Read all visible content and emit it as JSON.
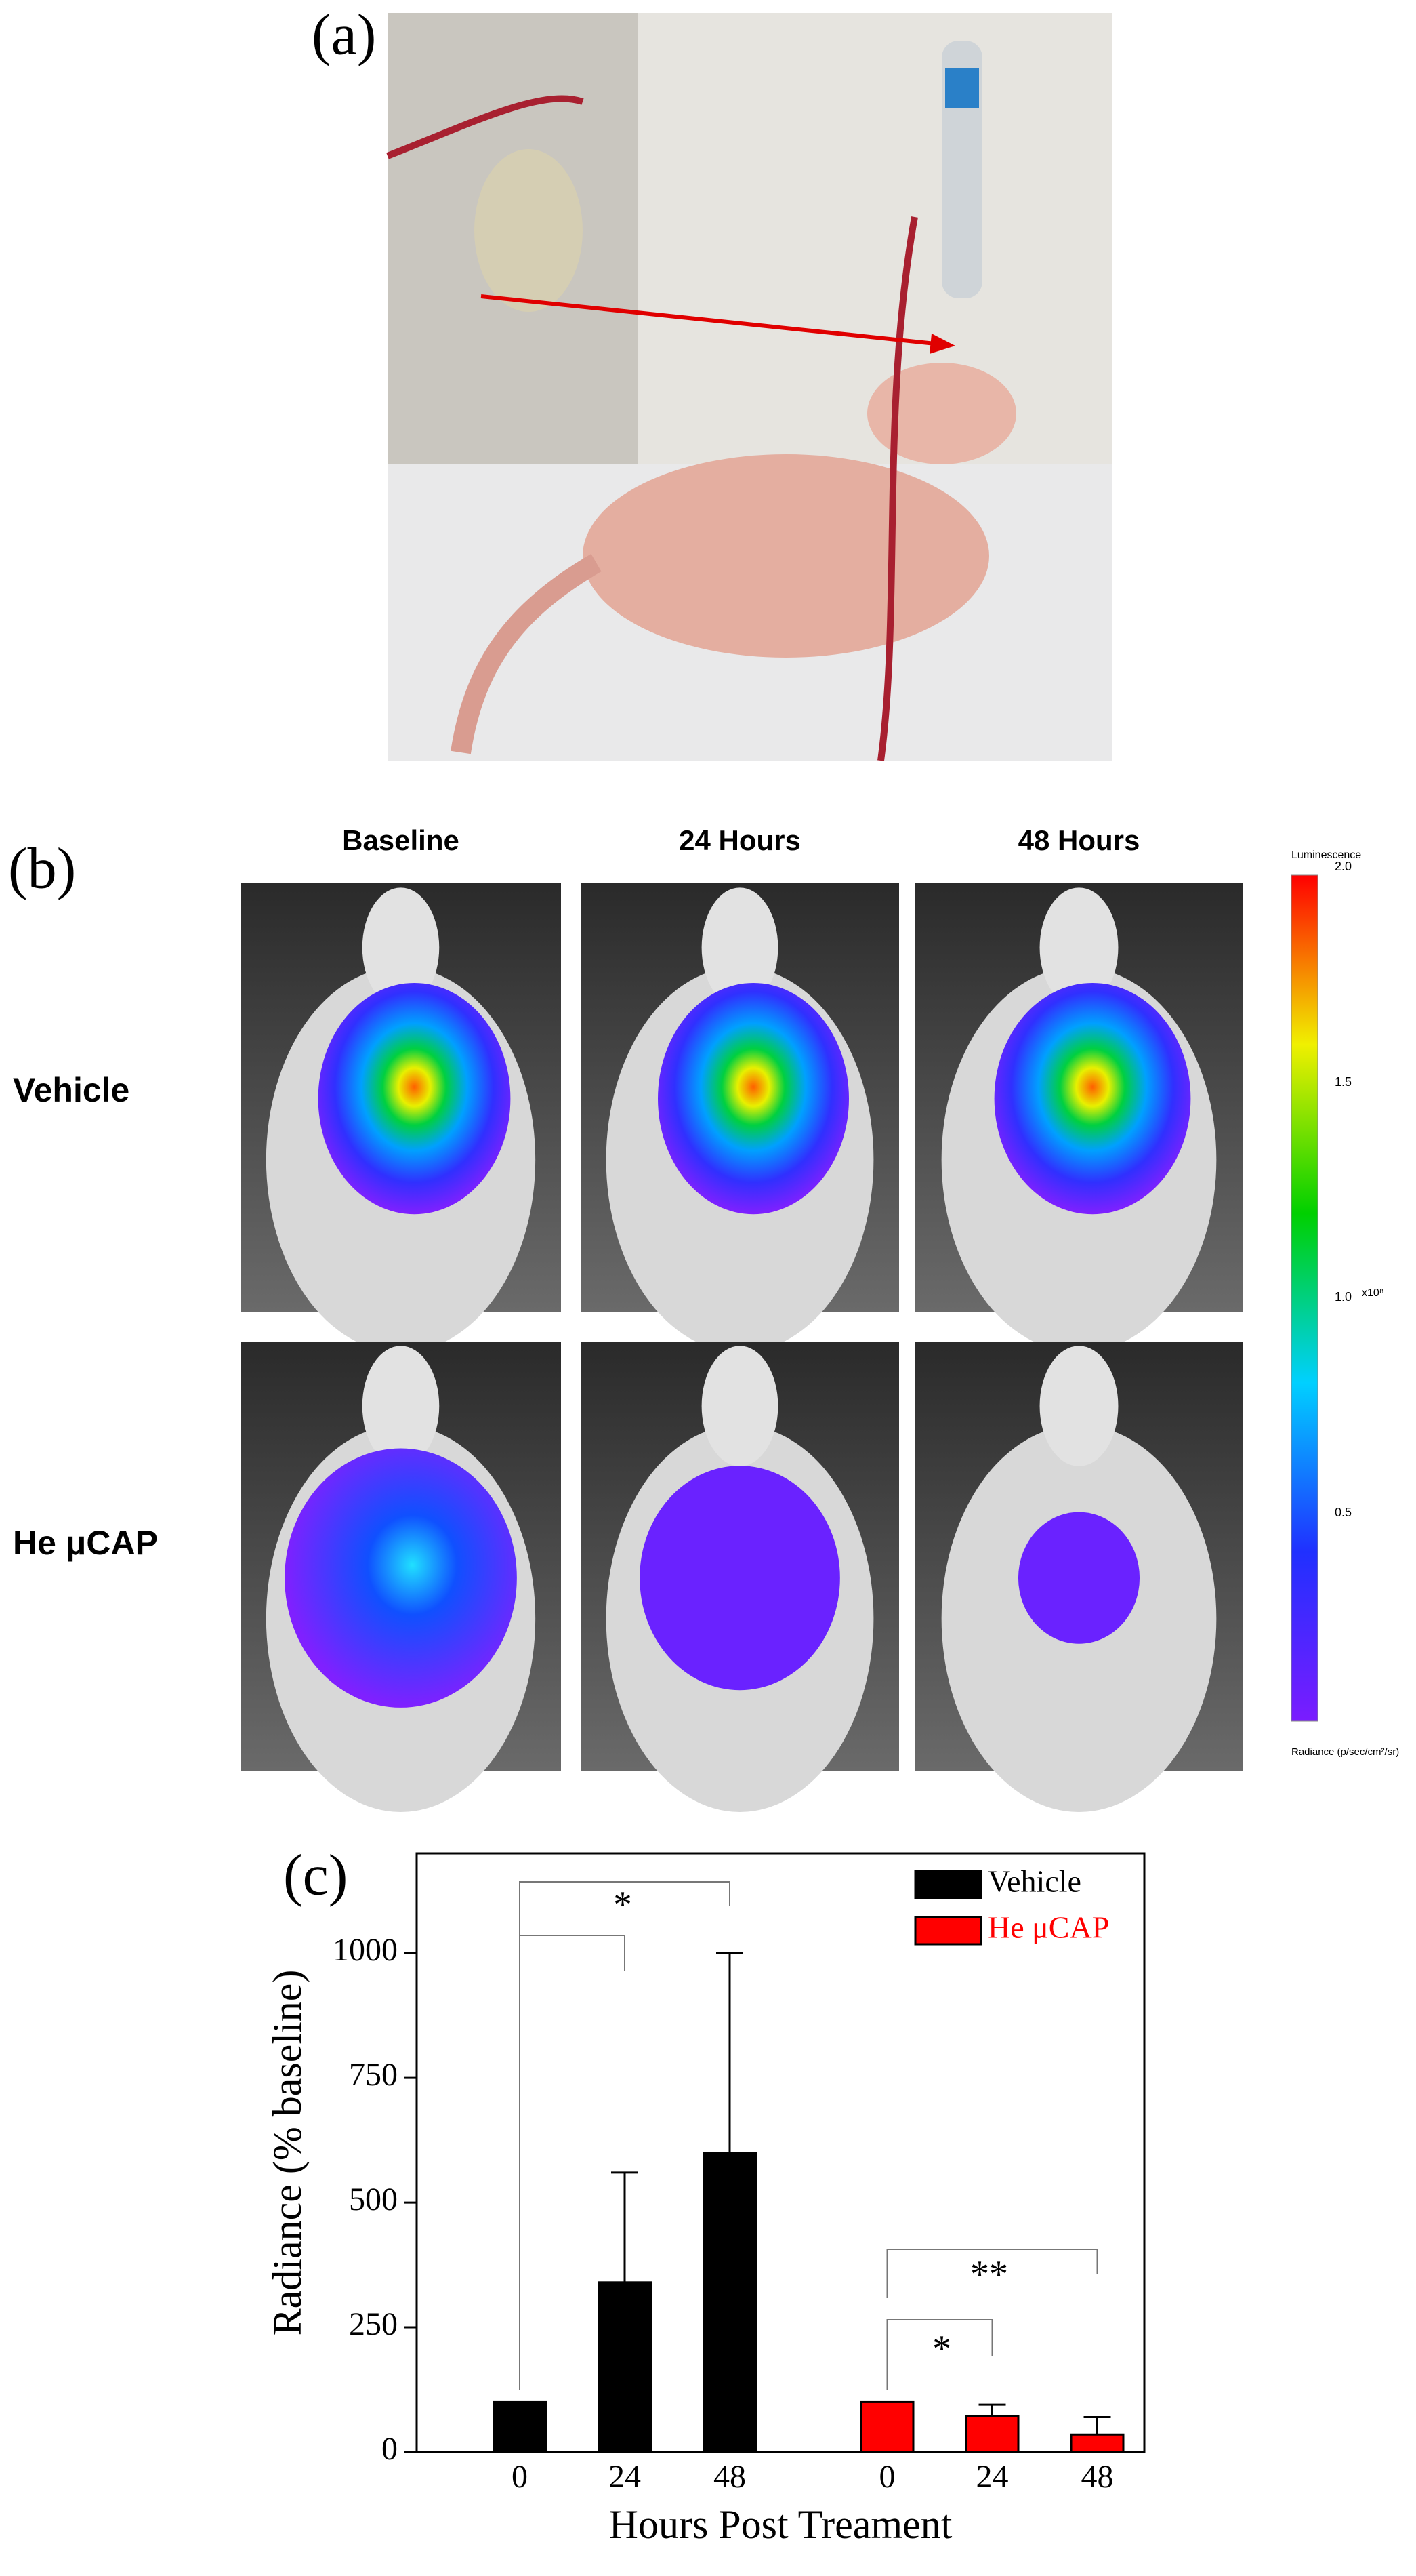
{
  "panels": {
    "a": "(a)",
    "b": "(b)",
    "c": "(c)"
  },
  "imaging": {
    "columns": [
      "Baseline",
      "24 Hours",
      "48 Hours"
    ],
    "rows": [
      "Vehicle",
      "He μCAP"
    ],
    "colorbar": {
      "title": "Luminescence",
      "ticks": [
        "2.0",
        "1.5",
        "1.0",
        "0.5"
      ],
      "exponent": "x10⁸",
      "unit": "Radiance (p/sec/cm²/sr)"
    }
  },
  "chart_data": {
    "type": "bar",
    "x_label": "Hours Post Treament",
    "y_label": "Radiance (% baseline)",
    "categories": [
      "0",
      "24",
      "48",
      "0",
      "24",
      "48"
    ],
    "series": [
      {
        "name": "Vehicle",
        "color": "#000000",
        "values": [
          100,
          340,
          600,
          null,
          null,
          null
        ],
        "errors": [
          null,
          220,
          400,
          null,
          null,
          null
        ]
      },
      {
        "name": "He μCAP",
        "color": "#ff0000",
        "values": [
          null,
          null,
          null,
          100,
          72,
          35
        ],
        "errors": [
          null,
          null,
          null,
          null,
          23,
          35
        ]
      }
    ],
    "ylim": [
      0,
      1200
    ],
    "yticks": [
      0,
      250,
      500,
      750,
      1000
    ],
    "legend": "top-right",
    "annotations": [
      "*",
      "*",
      "**"
    ]
  }
}
